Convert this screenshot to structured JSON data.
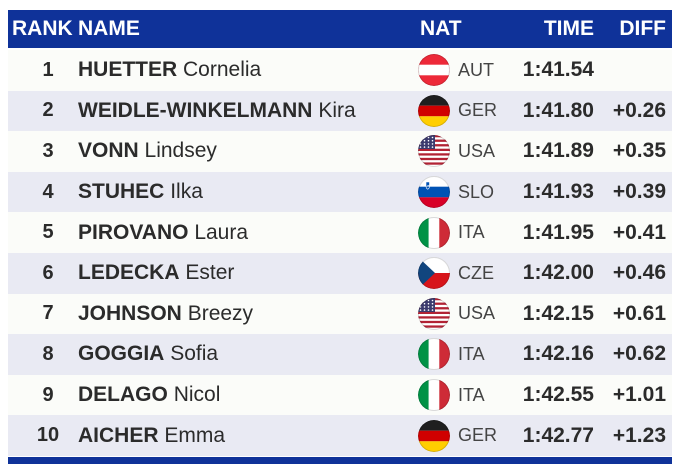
{
  "table": {
    "headers": {
      "rank": "RANK",
      "name": "NAME",
      "nat": "NAT",
      "time": "TIME",
      "diff": "DIFF"
    },
    "rows": [
      {
        "rank": "1",
        "surname": "HUETTER",
        "firstname": "Cornelia",
        "nat": "AUT",
        "flag": "aut-flag-icon",
        "time": "1:41.54",
        "diff": ""
      },
      {
        "rank": "2",
        "surname": "WEIDLE-WINKELMANN",
        "firstname": "Kira",
        "nat": "GER",
        "flag": "ger-flag-icon",
        "time": "1:41.80",
        "diff": "+0.26"
      },
      {
        "rank": "3",
        "surname": "VONN",
        "firstname": "Lindsey",
        "nat": "USA",
        "flag": "usa-flag-icon",
        "time": "1:41.89",
        "diff": "+0.35"
      },
      {
        "rank": "4",
        "surname": "STUHEC",
        "firstname": "Ilka",
        "nat": "SLO",
        "flag": "slo-flag-icon",
        "time": "1:41.93",
        "diff": "+0.39"
      },
      {
        "rank": "5",
        "surname": "PIROVANO",
        "firstname": "Laura",
        "nat": "ITA",
        "flag": "ita-flag-icon",
        "time": "1:41.95",
        "diff": "+0.41"
      },
      {
        "rank": "6",
        "surname": "LEDECKA",
        "firstname": "Ester",
        "nat": "CZE",
        "flag": "cze-flag-icon",
        "time": "1:42.00",
        "diff": "+0.46"
      },
      {
        "rank": "7",
        "surname": "JOHNSON",
        "firstname": "Breezy",
        "nat": "USA",
        "flag": "usa-flag-icon",
        "time": "1:42.15",
        "diff": "+0.61"
      },
      {
        "rank": "8",
        "surname": "GOGGIA",
        "firstname": "Sofia",
        "nat": "ITA",
        "flag": "ita-flag-icon",
        "time": "1:42.16",
        "diff": "+0.62"
      },
      {
        "rank": "9",
        "surname": "DELAGO",
        "firstname": "Nicol",
        "nat": "ITA",
        "flag": "ita-flag-icon",
        "time": "1:42.55",
        "diff": "+1.01"
      },
      {
        "rank": "10",
        "surname": "AICHER",
        "firstname": "Emma",
        "nat": "GER",
        "flag": "ger-flag-icon",
        "time": "1:42.77",
        "diff": "+1.23"
      }
    ]
  },
  "colors": {
    "header_bg": "#0F3299",
    "row_odd_bg": "#FBFCF9",
    "row_even_bg": "#E9EAF3",
    "text_main": "#2B2B2B",
    "text_nat": "#444444"
  }
}
